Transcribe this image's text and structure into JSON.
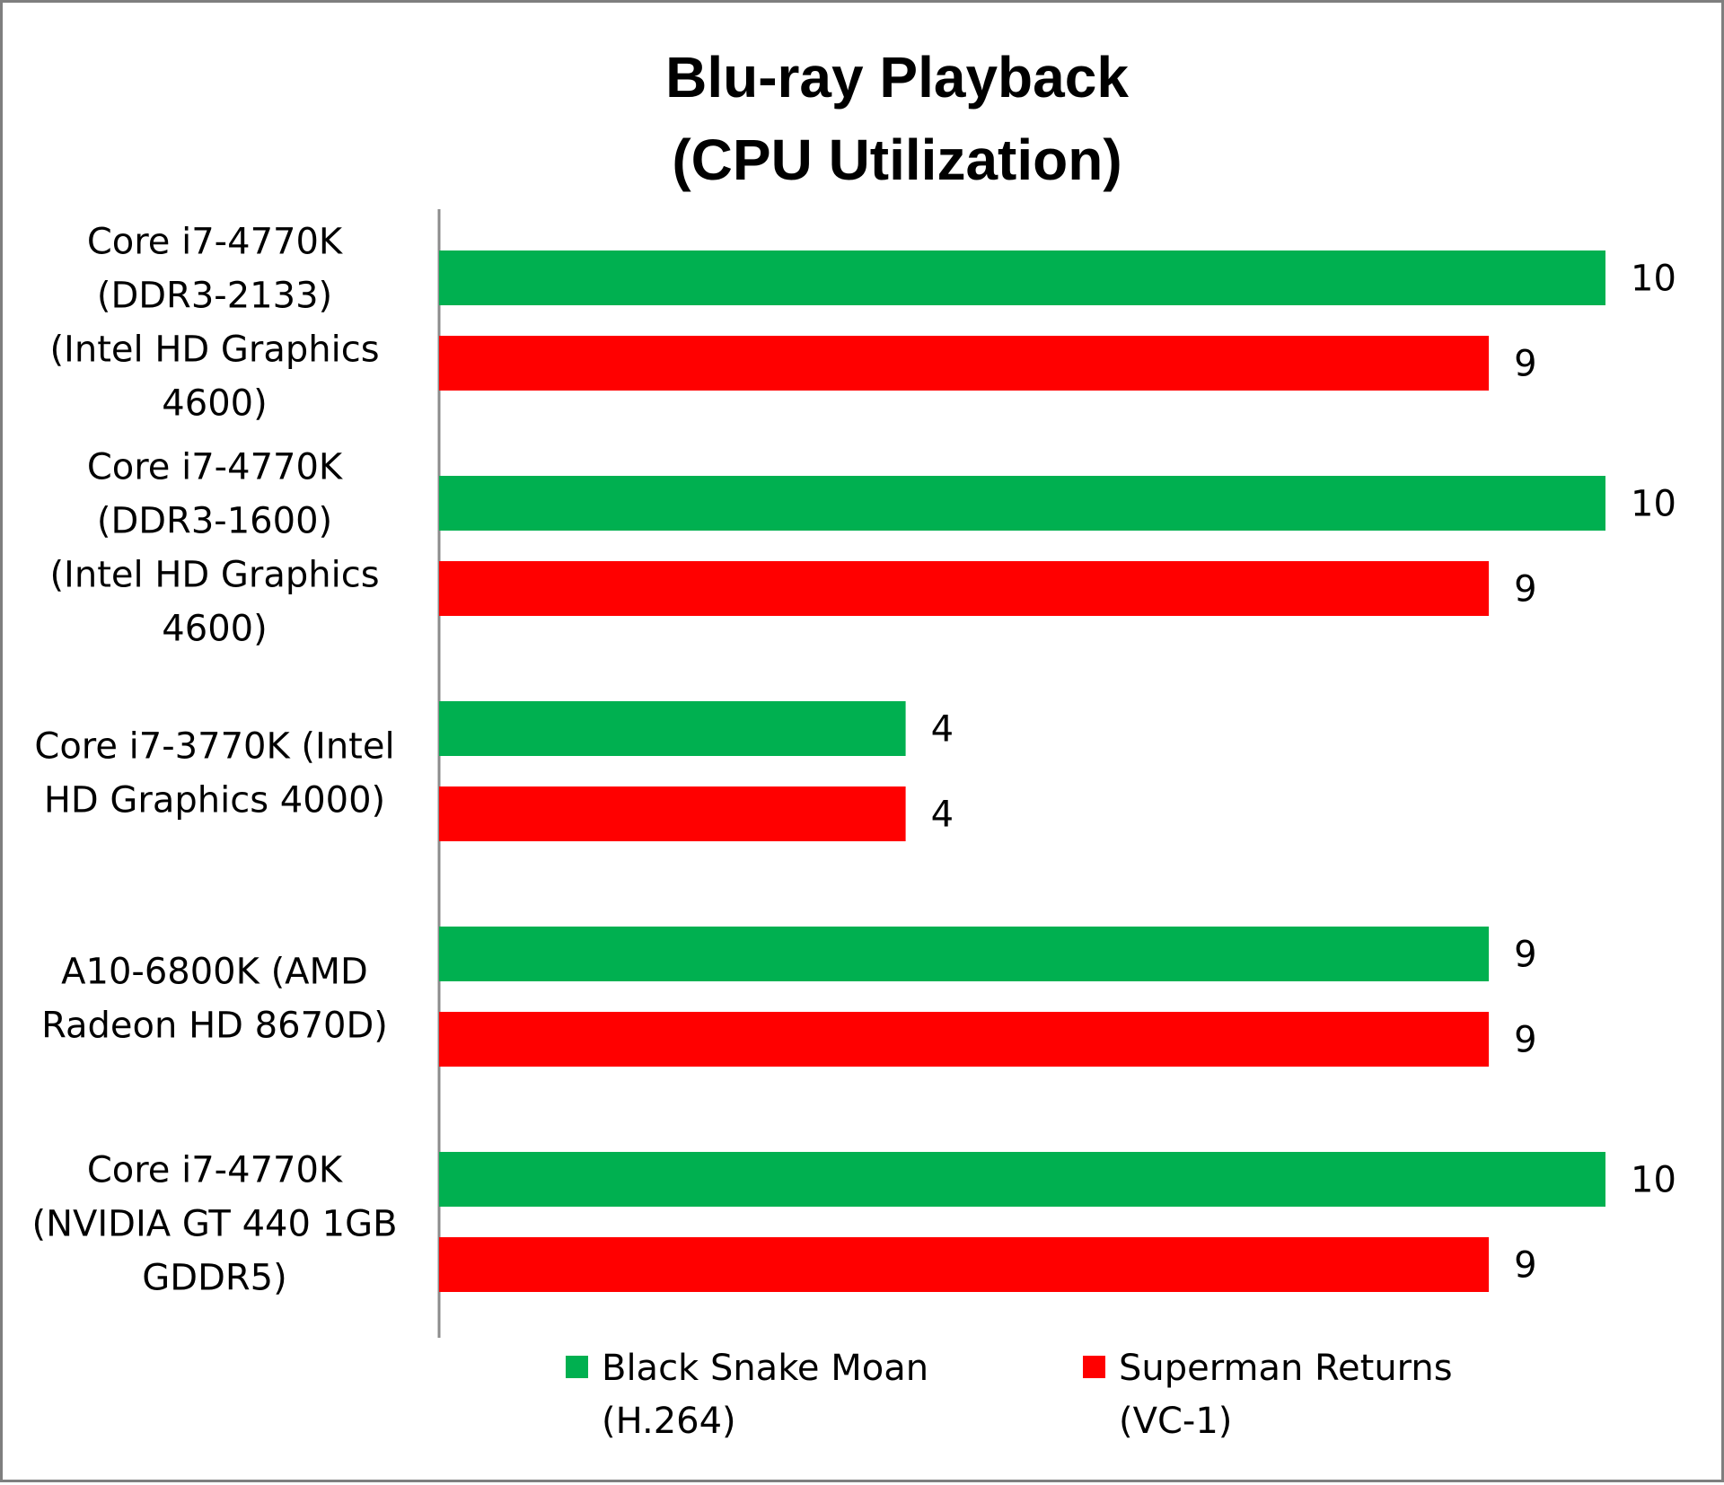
{
  "chart_data": {
    "type": "bar",
    "orientation": "horizontal",
    "title": [
      "Blu-ray Playback",
      "(CPU Utilization)"
    ],
    "categories": [
      [
        "Core i7-4770K",
        "(DDR3-2133)",
        "(Intel HD Graphics",
        "4600)"
      ],
      [
        "Core i7-4770K",
        "(DDR3-1600)",
        "(Intel HD Graphics",
        "4600)"
      ],
      [
        "Core i7-3770K (Intel",
        "HD Graphics 4000)"
      ],
      [
        "A10-6800K (AMD",
        "Radeon HD 8670D)"
      ],
      [
        "Core i7-4770K",
        "(NVIDIA GT 440 1GB",
        "GDDR5)"
      ]
    ],
    "series": [
      {
        "name": [
          "Black Snake Moan",
          "(H.264)"
        ],
        "color": "#00b050",
        "values": [
          10,
          10,
          4,
          9,
          10
        ]
      },
      {
        "name": [
          "Superman Returns",
          "(VC-1)"
        ],
        "color": "#ff0000",
        "values": [
          9,
          9,
          4,
          9,
          9
        ]
      }
    ],
    "xlim": [
      0,
      10
    ],
    "grid": false,
    "legend_position": "bottom",
    "data_labels": true
  }
}
